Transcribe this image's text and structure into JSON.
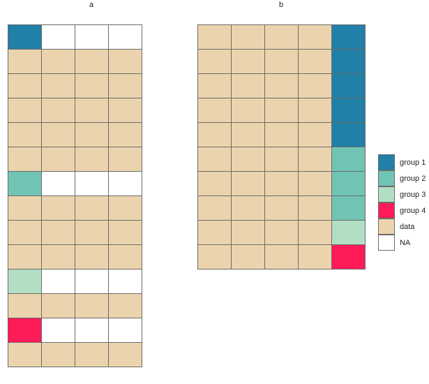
{
  "colors": {
    "group 1": "#2180a8",
    "group 2": "#70c4b4",
    "group 3": "#b2dfc3",
    "group 4": "#ff1a58",
    "data": "#ebd4ad",
    "NA": "#ffffff"
  },
  "panels": [
    {
      "title": "a",
      "columns": 4,
      "rows": [
        [
          "group 1",
          "NA",
          "NA",
          "NA"
        ],
        [
          "data",
          "data",
          "data",
          "data"
        ],
        [
          "data",
          "data",
          "data",
          "data"
        ],
        [
          "data",
          "data",
          "data",
          "data"
        ],
        [
          "data",
          "data",
          "data",
          "data"
        ],
        [
          "data",
          "data",
          "data",
          "data"
        ],
        [
          "group 2",
          "NA",
          "NA",
          "NA"
        ],
        [
          "data",
          "data",
          "data",
          "data"
        ],
        [
          "data",
          "data",
          "data",
          "data"
        ],
        [
          "data",
          "data",
          "data",
          "data"
        ],
        [
          "group 3",
          "NA",
          "NA",
          "NA"
        ],
        [
          "data",
          "data",
          "data",
          "data"
        ],
        [
          "group 4",
          "NA",
          "NA",
          "NA"
        ],
        [
          "data",
          "data",
          "data",
          "data"
        ]
      ]
    },
    {
      "title": "b",
      "columns": 5,
      "rows": [
        [
          "data",
          "data",
          "data",
          "data",
          "group 1"
        ],
        [
          "data",
          "data",
          "data",
          "data",
          "group 1"
        ],
        [
          "data",
          "data",
          "data",
          "data",
          "group 1"
        ],
        [
          "data",
          "data",
          "data",
          "data",
          "group 1"
        ],
        [
          "data",
          "data",
          "data",
          "data",
          "group 1"
        ],
        [
          "data",
          "data",
          "data",
          "data",
          "group 2"
        ],
        [
          "data",
          "data",
          "data",
          "data",
          "group 2"
        ],
        [
          "data",
          "data",
          "data",
          "data",
          "group 2"
        ],
        [
          "data",
          "data",
          "data",
          "data",
          "group 3"
        ],
        [
          "data",
          "data",
          "data",
          "data",
          "group 4"
        ]
      ]
    }
  ],
  "legend": {
    "items": [
      {
        "label": "group 1",
        "key": "group 1"
      },
      {
        "label": "group 2",
        "key": "group 2"
      },
      {
        "label": "group 3",
        "key": "group 3"
      },
      {
        "label": "group 4",
        "key": "group 4"
      },
      {
        "label": "data",
        "key": "data"
      },
      {
        "label": "NA",
        "key": "NA"
      }
    ]
  }
}
